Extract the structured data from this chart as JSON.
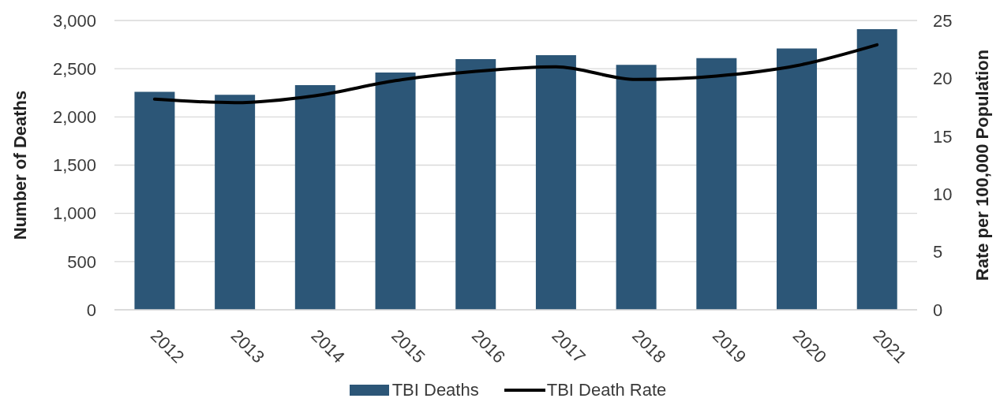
{
  "chart_data": {
    "type": "bar",
    "ylabel": "Number of Deaths",
    "y2label": "Rate per 100,000 Population",
    "categories": [
      "2012",
      "2013",
      "2014",
      "2015",
      "2016",
      "2017",
      "2018",
      "2019",
      "2020",
      "2021"
    ],
    "series": [
      {
        "name": "TBI Deaths",
        "color": "#2c5677",
        "values": [
          2260,
          2230,
          2330,
          2460,
          2600,
          2640,
          2540,
          2610,
          2710,
          2910
        ]
      },
      {
        "name": "TBI Death Rate",
        "type": "line",
        "axis": "y2",
        "color": "#000000",
        "values": [
          18.2,
          17.9,
          18.5,
          19.8,
          20.6,
          21.0,
          19.9,
          20.2,
          21.1,
          22.9
        ]
      }
    ],
    "ylim": [
      0,
      3000
    ],
    "yticks": [
      0,
      500,
      {
        "value": 1000,
        "label": "1,000"
      },
      {
        "value": 1500,
        "label": "1,500"
      },
      {
        "value": 2000,
        "label": "2,000"
      },
      {
        "value": 2500,
        "label": "2,500"
      },
      {
        "value": 3000,
        "label": "3,000"
      }
    ],
    "y2lim": [
      0,
      25
    ],
    "y2ticks": [
      0,
      5,
      10,
      15,
      20,
      25
    ],
    "grid": "y",
    "legend": "bottom",
    "line_style": "solid"
  }
}
